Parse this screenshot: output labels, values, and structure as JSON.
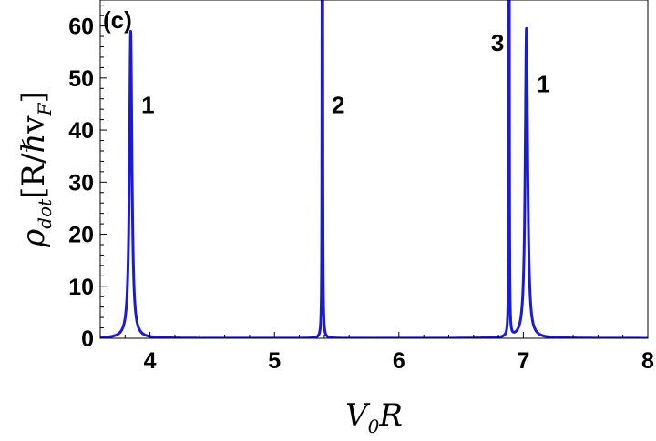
{
  "chart_data": {
    "type": "line",
    "panel_label": "(c)",
    "xlim": [
      3.6,
      8.0
    ],
    "ylim": [
      0,
      65
    ],
    "x_ticks": [
      4,
      5,
      6,
      7,
      8
    ],
    "y_ticks": [
      0,
      10,
      20,
      30,
      40,
      50,
      60
    ],
    "x_tick_labels": [
      "4",
      "5",
      "6",
      "7",
      "8"
    ],
    "y_tick_labels": [
      "0",
      "10",
      "20",
      "30",
      "40",
      "50",
      "60"
    ],
    "xlabel": {
      "main": "V",
      "sub": "0",
      "rest": "R"
    },
    "ylabel": {
      "main": "ρ",
      "sub": "dot",
      "rest": "[R/ℏv",
      "sub2": "F",
      "close": "]"
    },
    "line_color": "#1a1adc",
    "grid": false,
    "peaks": [
      {
        "x0": 3.845,
        "height": 59.0,
        "width": 0.012,
        "label": "1"
      },
      {
        "x0": 5.385,
        "height": 400.0,
        "width": 0.0012,
        "label": "2"
      },
      {
        "x0": 6.885,
        "height": 800.0,
        "width": 0.0008,
        "label": "3"
      },
      {
        "x0": 7.025,
        "height": 59.5,
        "width": 0.012,
        "label": "1"
      }
    ],
    "annotations": [
      {
        "text": "1",
        "x": 3.93,
        "y": 45
      },
      {
        "text": "2",
        "x": 5.46,
        "y": 45
      },
      {
        "text": "3",
        "x": 6.74,
        "y": 57
      },
      {
        "text": "1",
        "x": 7.11,
        "y": 49
      }
    ]
  }
}
